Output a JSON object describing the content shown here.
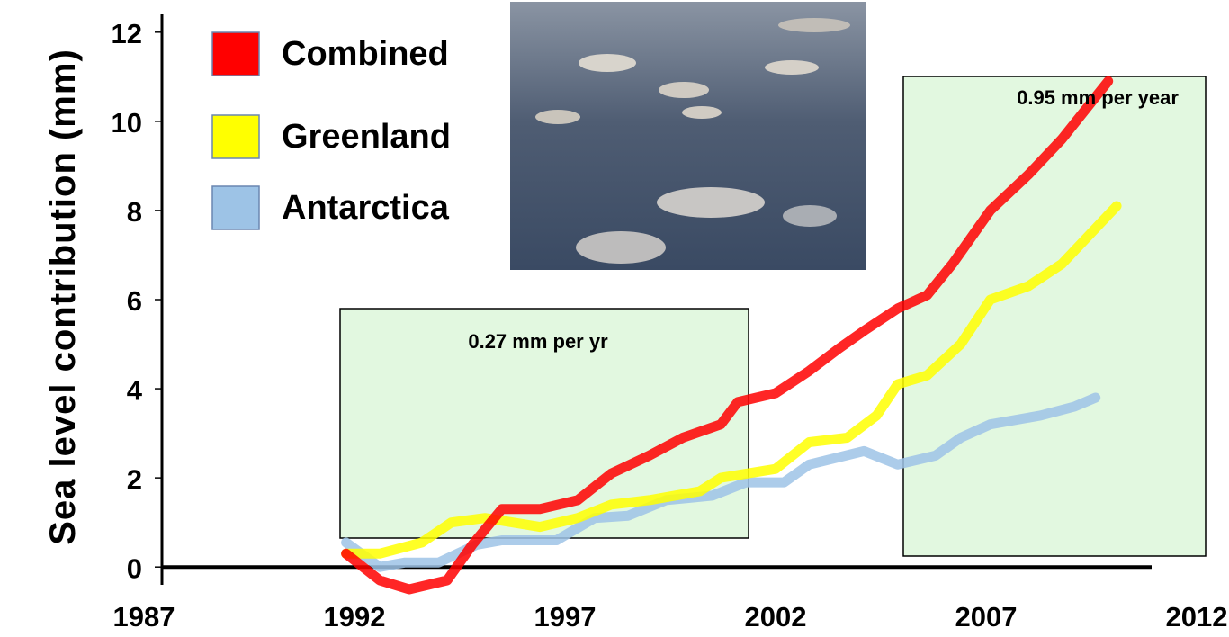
{
  "chart_data": {
    "type": "line",
    "y_label": "Sea level contribution (mm)",
    "xlim": [
      1987,
      2012
    ],
    "xticks": [
      1987,
      1992,
      1997,
      2002,
      2007,
      2012
    ],
    "ylim": [
      -0.4,
      12.4
    ],
    "yticks": [
      0,
      2,
      4,
      6,
      8,
      10,
      12
    ],
    "annotations": [
      "0.27 mm per yr",
      "0.95 mm per year"
    ],
    "series": [
      {
        "name": "Combined",
        "color": "#ff0000",
        "x": [
          1991.8,
          1992.6,
          1993.3,
          1994.2,
          1994.8,
          1995.5,
          1996.4,
          1997.3,
          1998.1,
          1999.0,
          1999.8,
          2000.7,
          2001.1,
          2002.0,
          2002.8,
          2003.5,
          2004.1,
          2004.9,
          2005.6,
          2006.2,
          2007.1,
          2008.0,
          2008.8,
          2009.9
        ],
        "values": [
          0.3,
          -0.3,
          -0.5,
          -0.3,
          0.5,
          1.3,
          1.3,
          1.5,
          2.1,
          2.5,
          2.9,
          3.2,
          3.7,
          3.9,
          4.4,
          4.9,
          5.3,
          5.8,
          6.1,
          6.8,
          8.0,
          8.8,
          9.6,
          10.9
        ]
      },
      {
        "name": "Greenland",
        "color": "#ffff00",
        "x": [
          1991.8,
          1992.6,
          1993.6,
          1994.3,
          1995.1,
          1996.4,
          1997.3,
          1998.1,
          1999.0,
          2000.2,
          2000.7,
          2002.0,
          2002.8,
          2003.7,
          2004.4,
          2004.9,
          2005.6,
          2006.4,
          2007.1,
          2008.0,
          2008.8,
          2010.1
        ],
        "values": [
          0.3,
          0.3,
          0.55,
          1.0,
          1.1,
          0.9,
          1.1,
          1.4,
          1.5,
          1.7,
          2.0,
          2.2,
          2.8,
          2.9,
          3.4,
          4.1,
          4.3,
          5.0,
          6.0,
          6.3,
          6.8,
          8.1
        ]
      },
      {
        "name": "Antarctica",
        "color": "#9dc3e6",
        "x": [
          1991.8,
          1992.6,
          1993.2,
          1994.0,
          1994.9,
          1995.5,
          1996.8,
          1997.7,
          1998.5,
          1999.4,
          2000.5,
          2001.3,
          2002.2,
          2002.8,
          2004.1,
          2004.9,
          2005.8,
          2006.4,
          2007.1,
          2008.3,
          2009.1,
          2009.6
        ],
        "values": [
          0.55,
          0.0,
          0.1,
          0.1,
          0.5,
          0.6,
          0.6,
          1.1,
          1.15,
          1.5,
          1.6,
          1.9,
          1.9,
          2.3,
          2.6,
          2.3,
          2.5,
          2.9,
          3.2,
          3.4,
          3.6,
          3.8
        ]
      }
    ]
  }
}
